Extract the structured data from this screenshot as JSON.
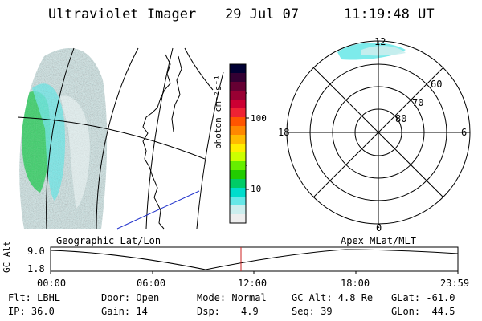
{
  "header": {
    "instrument": "Ultraviolet Imager",
    "date": "29 Jul 07",
    "time": "11:19:48 UT"
  },
  "colorbar": {
    "unit_label": "photon cm⁻²s⁻¹",
    "ticks": [
      "100",
      "10"
    ],
    "colors": [
      "#000033",
      "#330033",
      "#660033",
      "#990033",
      "#cc0033",
      "#ee2233",
      "#ff5500",
      "#ff8800",
      "#ffbb00",
      "#ffee00",
      "#ccff00",
      "#66ee00",
      "#22cc00",
      "#00cc66",
      "#00ddcc",
      "#66e8e8",
      "#cceeee",
      "#eeeeee"
    ]
  },
  "polar": {
    "mlt_labels": {
      "top": "12",
      "left": "18",
      "right": "6",
      "bottom": "0"
    },
    "lat_labels": [
      "60",
      "70",
      "80"
    ]
  },
  "timeline": {
    "left_title": "Geographic Lat/Lon",
    "right_title": "Apex MLat/MLT",
    "y_label": "GC Alt",
    "y_top": "9.0",
    "y_bottom": "1.8",
    "x_ticks": [
      "00:00",
      "06:00",
      "12:00",
      "18:00",
      "23:59"
    ],
    "marker_color": "#cc2222"
  },
  "info": {
    "flt": "Flt: LBHL",
    "ip": "IP: 36.0",
    "door": "Door: Open",
    "gain": "Gain: 14",
    "mode": "Mode: Normal",
    "dsp_label": "Dsp:",
    "dsp_value": "4.9",
    "gcalt": "GC Alt: 4.8 Re",
    "seq": "Seq: 39",
    "glat": "GLat: -61.0",
    "glon": "GLon:  44.5"
  }
}
